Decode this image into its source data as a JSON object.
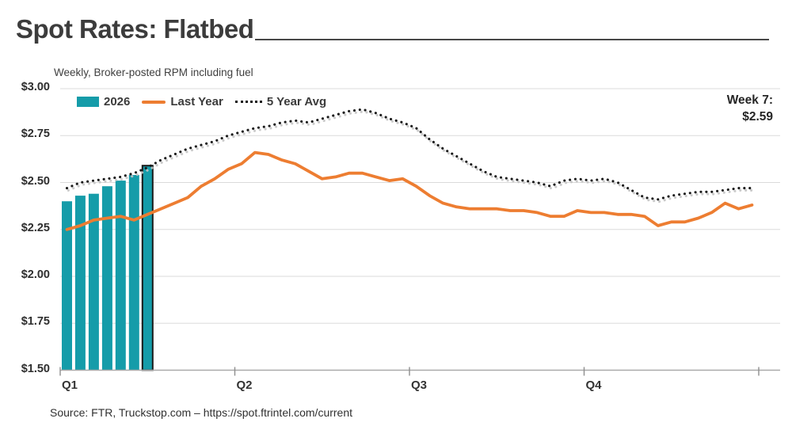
{
  "header": {
    "title": "Spot Rates: Flatbed",
    "subtitle": "Weekly, Broker-posted RPM including fuel"
  },
  "annotation": {
    "line1": "Week 7:",
    "line2": "$2.59"
  },
  "source": "Source: FTR, Truckstop.com – https://spot.ftrintel.com/current",
  "chart_data": {
    "type": "bar+line combo",
    "title": "Spot Rates: Flatbed",
    "subtitle": "Weekly, Broker-posted RPM including fuel",
    "x_unit": "week of year (1-52)",
    "x_tick_labels": [
      "Q1",
      "Q2",
      "Q3",
      "Q4"
    ],
    "y_tick_labels": [
      "$3.00",
      "$2.75",
      "$2.50",
      "$2.25",
      "$2.00",
      "$1.75",
      "$1.50"
    ],
    "y_tick_values": [
      3.0,
      2.75,
      2.5,
      2.25,
      2.0,
      1.75,
      1.5
    ],
    "ylim": [
      1.5,
      3.0
    ],
    "grid": "horizontal",
    "legend_position": "top-left",
    "annotation": "Week 7: $2.59",
    "series": [
      {
        "name": "2026",
        "type": "bar",
        "color": "#159CA9",
        "weeks": [
          1,
          2,
          3,
          4,
          5,
          6,
          7
        ],
        "values": [
          2.4,
          2.43,
          2.44,
          2.48,
          2.51,
          2.54,
          2.59
        ],
        "highlight_last_bar": true
      },
      {
        "name": "Last Year",
        "type": "line",
        "color": "#ED7D31",
        "values": [
          2.25,
          2.27,
          2.3,
          2.31,
          2.32,
          2.3,
          2.33,
          2.36,
          2.39,
          2.42,
          2.48,
          2.52,
          2.57,
          2.6,
          2.66,
          2.65,
          2.62,
          2.6,
          2.56,
          2.52,
          2.53,
          2.55,
          2.55,
          2.53,
          2.51,
          2.52,
          2.48,
          2.43,
          2.39,
          2.37,
          2.36,
          2.36,
          2.36,
          2.35,
          2.35,
          2.34,
          2.32,
          2.32,
          2.35,
          2.34,
          2.34,
          2.33,
          2.33,
          2.32,
          2.27,
          2.29,
          2.29,
          2.31,
          2.34,
          2.39,
          2.36,
          2.38
        ]
      },
      {
        "name": "5 Year Avg",
        "type": "dotted-line",
        "color": "#1a1a1a",
        "shadow_color": "#c4c4c4",
        "values": [
          2.47,
          2.5,
          2.51,
          2.52,
          2.53,
          2.55,
          2.58,
          2.62,
          2.65,
          2.68,
          2.7,
          2.72,
          2.75,
          2.77,
          2.79,
          2.8,
          2.82,
          2.83,
          2.82,
          2.84,
          2.86,
          2.88,
          2.89,
          2.87,
          2.84,
          2.82,
          2.79,
          2.73,
          2.68,
          2.64,
          2.6,
          2.56,
          2.53,
          2.52,
          2.51,
          2.5,
          2.48,
          2.51,
          2.52,
          2.51,
          2.52,
          2.5,
          2.46,
          2.42,
          2.41,
          2.43,
          2.44,
          2.45,
          2.45,
          2.46,
          2.47,
          2.47
        ]
      }
    ]
  }
}
